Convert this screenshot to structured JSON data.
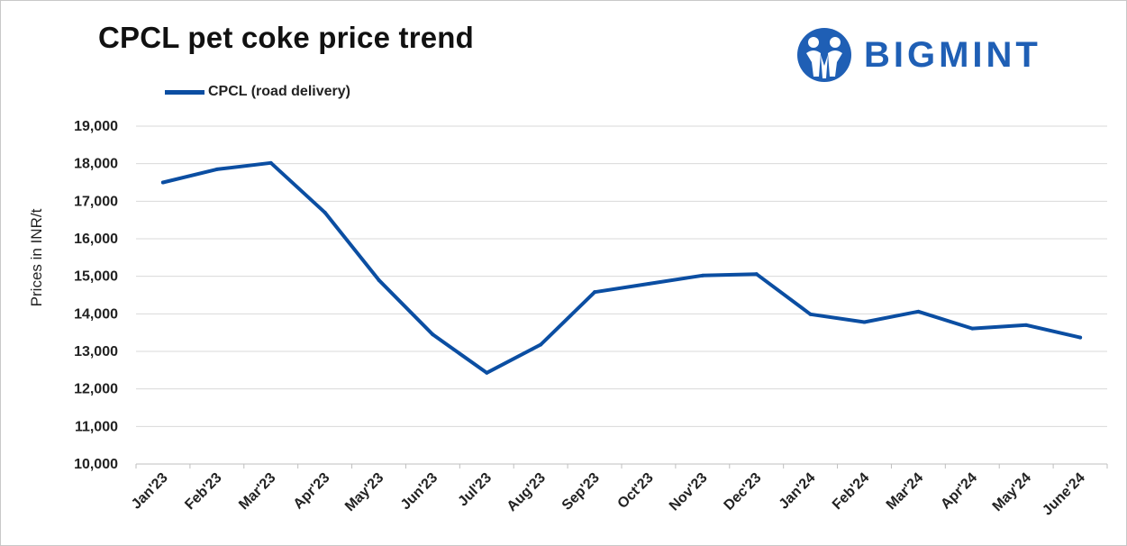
{
  "chart_data": {
    "type": "line",
    "title": "CPCL pet coke price trend",
    "ylabel": "Prices in INR/t",
    "xlabel": "",
    "categories": [
      "Jan'23",
      "Feb'23",
      "Mar'23",
      "Apr'23",
      "May'23",
      "Jun'23",
      "Jul'23",
      "Aug'23",
      "Sep'23",
      "Oct'23",
      "Nov'23",
      "Dec'23",
      "Jan'24",
      "Feb'24",
      "Mar'24",
      "Apr'24",
      "May'24",
      "June'24"
    ],
    "series": [
      {
        "name": "CPCL (road delivery)",
        "color": "#0b4ea2",
        "values": [
          17500,
          17850,
          18020,
          16700,
          14900,
          13450,
          12430,
          13180,
          14580,
          14800,
          15020,
          15060,
          13990,
          13780,
          14060,
          13610,
          13700,
          13370
        ]
      }
    ],
    "ylim": [
      10000,
      19000
    ],
    "yticks": [
      10000,
      11000,
      12000,
      13000,
      14000,
      15000,
      16000,
      17000,
      18000,
      19000
    ],
    "ytick_labels": [
      "10,000",
      "11,000",
      "12,000",
      "13,000",
      "14,000",
      "15,000",
      "16,000",
      "17,000",
      "18,000",
      "19,000"
    ],
    "grid": "horizontal",
    "legend_position": "top-left"
  },
  "brand": {
    "name": "BIGMINT",
    "color": "#1f5fb5"
  }
}
